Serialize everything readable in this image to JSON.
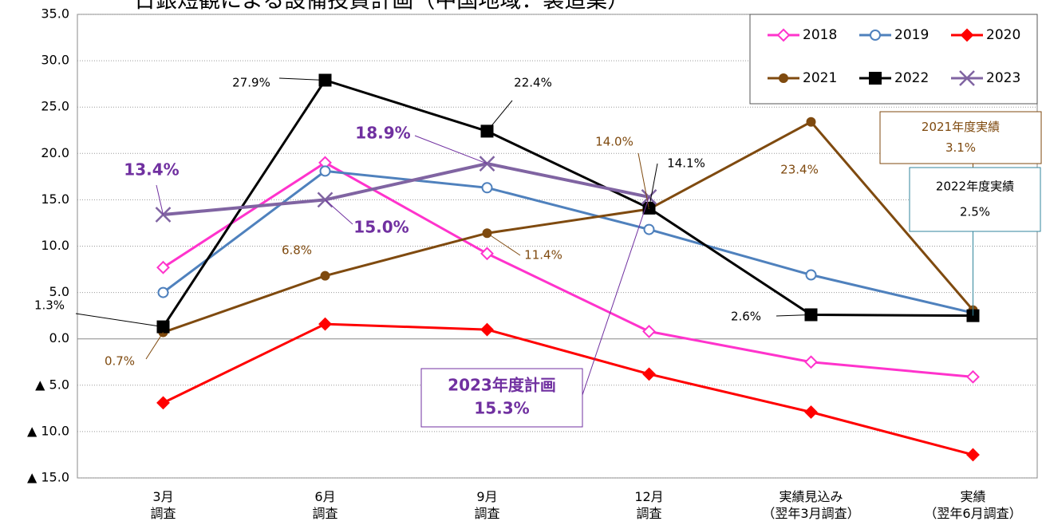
{
  "chart_data": {
    "type": "line",
    "title": "日銀短観による設備投資計画（中国地域：製造業）",
    "categories": [
      "3月\n調査",
      "6月\n調査",
      "9月\n調査",
      "12月\n調査",
      "実績見込み\n（翌年3月調査）",
      "実績\n（翌年6月調査）"
    ],
    "ylim": [
      -15,
      35
    ],
    "yticks": [
      {
        "value": 35,
        "label": "35.0"
      },
      {
        "value": 30,
        "label": "30.0"
      },
      {
        "value": 25,
        "label": "25.0"
      },
      {
        "value": 20,
        "label": "20.0"
      },
      {
        "value": 15,
        "label": "15.0"
      },
      {
        "value": 10,
        "label": "10.0"
      },
      {
        "value": 5,
        "label": "5.0"
      },
      {
        "value": 0,
        "label": "0.0"
      },
      {
        "value": -5,
        "label": "▲ 5.0"
      },
      {
        "value": -10,
        "label": "▲ 10.0"
      },
      {
        "value": -15,
        "label": "▲ 15.0"
      }
    ],
    "grid": true,
    "legend": "top-right",
    "series": [
      {
        "name": "2018",
        "color": "#ff33cc",
        "marker": "diamond-open",
        "values": [
          7.7,
          19.0,
          9.2,
          0.8,
          -2.5,
          -4.1
        ]
      },
      {
        "name": "2019",
        "color": "#4f81bd",
        "marker": "circle-open",
        "values": [
          5.0,
          18.1,
          16.3,
          11.8,
          6.9,
          2.8
        ]
      },
      {
        "name": "2020",
        "color": "#ff0000",
        "marker": "diamond",
        "values": [
          -6.9,
          1.6,
          1.0,
          -3.8,
          -7.9,
          -12.5
        ]
      },
      {
        "name": "2021",
        "color": "#7f4a0f",
        "marker": "circle",
        "values": [
          0.7,
          6.8,
          11.4,
          14.0,
          23.4,
          3.1
        ],
        "value_labels": [
          "0.7%",
          "6.8%",
          "11.4%",
          "14.0%",
          "23.4%",
          "3.1%"
        ],
        "callout": "2021年度実績"
      },
      {
        "name": "2022",
        "color": "#000000",
        "marker": "square",
        "values": [
          1.3,
          27.9,
          22.4,
          14.1,
          2.6,
          2.5
        ],
        "value_labels": [
          "1.3%",
          "27.9%",
          "22.4%",
          "14.1%",
          "2.6%",
          "2.5%"
        ],
        "callout": "2022年度実績"
      },
      {
        "name": "2023",
        "color": "#8064a2",
        "marker": "x",
        "values": [
          13.4,
          15.0,
          18.9,
          15.3,
          null,
          null
        ],
        "value_labels": [
          "13.4%",
          "15.0%",
          "18.9%",
          "15.3%",
          null,
          null
        ],
        "callout": "2023年度計画"
      }
    ]
  }
}
